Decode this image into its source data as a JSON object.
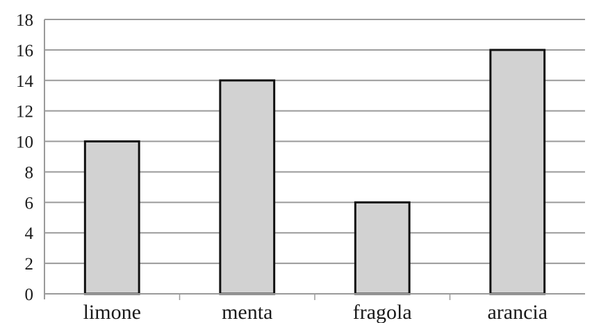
{
  "chart_data": {
    "type": "bar",
    "categories": [
      "limone",
      "menta",
      "fragola",
      "arancia"
    ],
    "series": [
      {
        "values": [
          10,
          14,
          6,
          16
        ]
      }
    ],
    "ylim": [
      0,
      18
    ],
    "yticks": [
      "0",
      "2",
      "4",
      "6",
      "8",
      "10",
      "12",
      "14",
      "16",
      "18"
    ],
    "grid": true,
    "legend": "none",
    "colors": {
      "bar_fill": "#d2d2d2",
      "bar_stroke": "#111111",
      "grid": "#9a9a9a",
      "text": "#1a1a1a"
    }
  }
}
